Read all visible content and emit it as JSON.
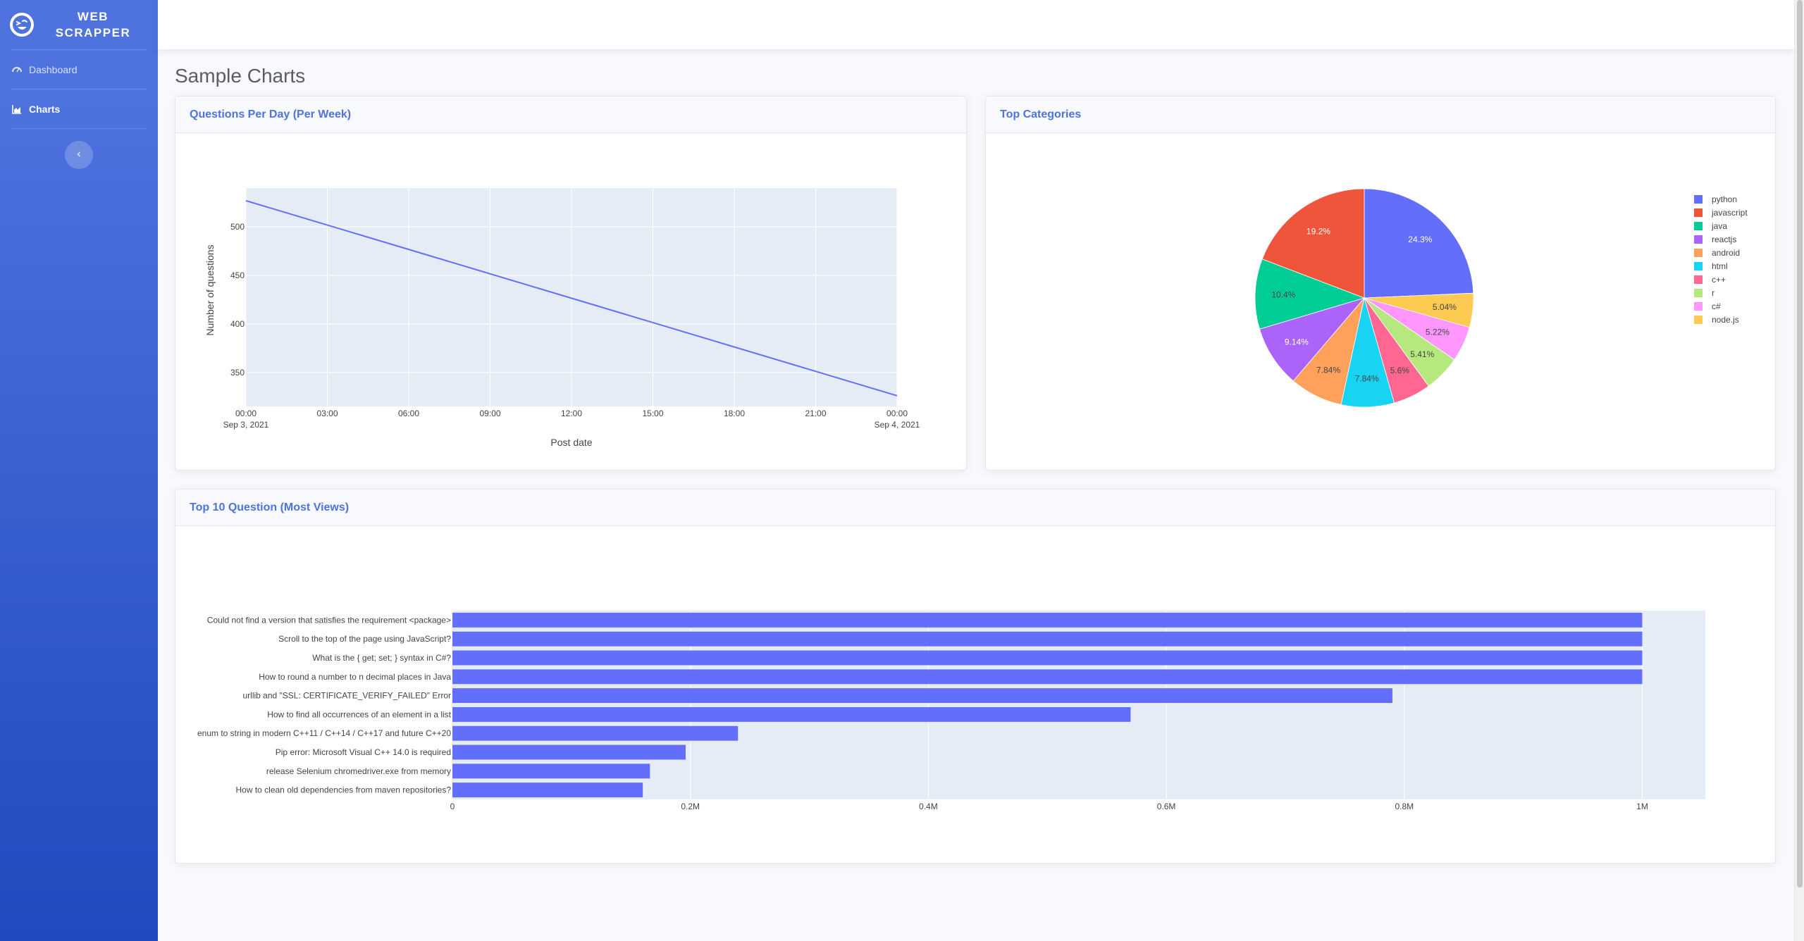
{
  "brand": {
    "name_line1": "WEB",
    "name_line2": "SCRAPPER",
    "logo_icon": "laughing-face-icon"
  },
  "sidebar": {
    "items": [
      {
        "label": "Dashboard",
        "icon": "dashboard-icon",
        "active": false
      },
      {
        "label": "Charts",
        "icon": "chart-area-icon",
        "active": true
      }
    ],
    "toggle_icon": "chevron-left-icon"
  },
  "page": {
    "title": "Sample Charts"
  },
  "cards": {
    "line": {
      "title": "Questions Per Day (Per Week)"
    },
    "pie": {
      "title": "Top Categories"
    },
    "bar": {
      "title": "Top 10 Question (Most Views)"
    }
  },
  "colors": {
    "accent": "#4e73df",
    "plot_bg": "#e5ecf6",
    "bar": "#636efa",
    "line": "#636efa"
  },
  "chart_data": [
    {
      "type": "line",
      "title": "",
      "xlabel": "Post date",
      "ylabel": "Number of questions",
      "x": [
        "Sep 3, 2021 00:00",
        "Sep 4, 2021 00:00"
      ],
      "y": [
        527,
        326
      ],
      "xlim": [
        "Sep 3, 2021 00:00",
        "Sep 4, 2021 00:00"
      ],
      "ylim": [
        315,
        540
      ],
      "x_ticks": [
        {
          "label": "00:00",
          "sub": "Sep 3, 2021",
          "hour": 0
        },
        {
          "label": "03:00",
          "sub": "",
          "hour": 3
        },
        {
          "label": "06:00",
          "sub": "",
          "hour": 6
        },
        {
          "label": "09:00",
          "sub": "",
          "hour": 9
        },
        {
          "label": "12:00",
          "sub": "",
          "hour": 12
        },
        {
          "label": "15:00",
          "sub": "",
          "hour": 15
        },
        {
          "label": "18:00",
          "sub": "",
          "hour": 18
        },
        {
          "label": "21:00",
          "sub": "",
          "hour": 21
        },
        {
          "label": "00:00",
          "sub": "Sep 4, 2021",
          "hour": 24
        }
      ],
      "y_ticks": [
        350,
        400,
        450,
        500
      ],
      "grid": true
    },
    {
      "type": "pie",
      "title": "",
      "legend_position": "right",
      "slices": [
        {
          "label": "python",
          "value": 24.3,
          "text": "24.3%",
          "color": "#636efa"
        },
        {
          "label": "node.js",
          "value": 5.04,
          "text": "5.04%",
          "color": "#fecb52"
        },
        {
          "label": "c#",
          "value": 5.22,
          "text": "5.22%",
          "color": "#ff97ff"
        },
        {
          "label": "r",
          "value": 5.41,
          "text": "5.41%",
          "color": "#b6e880"
        },
        {
          "label": "c++",
          "value": 5.6,
          "text": "5.6%",
          "color": "#ff6692"
        },
        {
          "label": "html",
          "value": 7.84,
          "text": "7.84%",
          "color": "#19d3f3"
        },
        {
          "label": "android",
          "value": 7.84,
          "text": "7.84%",
          "color": "#ffa15a"
        },
        {
          "label": "reactjs",
          "value": 9.14,
          "text": "9.14%",
          "color": "#ab63fa"
        },
        {
          "label": "java",
          "value": 10.4,
          "text": "10.4%",
          "color": "#00cc96"
        },
        {
          "label": "javascript",
          "value": 19.2,
          "text": "19.2%",
          "color": "#ef553b"
        }
      ],
      "legend": [
        "python",
        "javascript",
        "java",
        "reactjs",
        "android",
        "html",
        "c++",
        "r",
        "c#",
        "node.js"
      ]
    },
    {
      "type": "bar",
      "orientation": "horizontal",
      "title": "",
      "xlabel": "",
      "ylabel": "",
      "categories": [
        "Could not find a version that satisfies the requirement <package>",
        "Scroll to the top of the page using JavaScript?",
        "What is the { get; set; } syntax in C#?",
        "How to round a number to n decimal places in Java",
        "urllib and \"SSL: CERTIFICATE_VERIFY_FAILED\" Error",
        "How to find all occurrences of an element in a list",
        "enum to string in modern C++11 / C++14 / C++17 and future C++20",
        "Pip error: Microsoft Visual C++ 14.0 is required",
        "release Selenium chromedriver.exe from memory",
        "How to clean old dependencies from maven repositories?"
      ],
      "values": [
        1000000,
        1000000,
        1000000,
        1000000,
        790000,
        570000,
        240000,
        196000,
        166000,
        160000
      ],
      "xlim": [
        0,
        1053000
      ],
      "x_ticks": [
        {
          "label": "0",
          "value": 0
        },
        {
          "label": "0.2M",
          "value": 200000
        },
        {
          "label": "0.4M",
          "value": 400000
        },
        {
          "label": "0.6M",
          "value": 600000
        },
        {
          "label": "0.8M",
          "value": 800000
        },
        {
          "label": "1M",
          "value": 1000000
        }
      ],
      "grid": true
    }
  ]
}
